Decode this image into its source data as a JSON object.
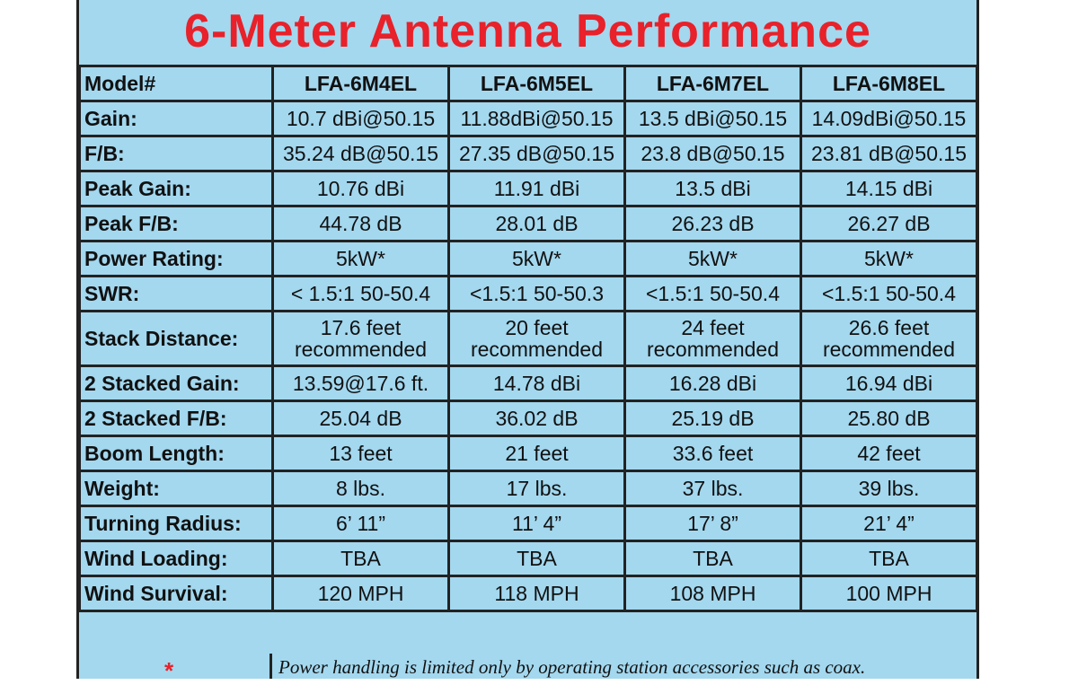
{
  "header": {
    "title": "6-Meter Antenna Performance"
  },
  "table": {
    "columns": [
      "Model#",
      "LFA-6M4EL",
      "LFA-6M5EL",
      "LFA-6M7EL",
      "LFA-6M8EL"
    ],
    "rows": [
      [
        "Gain:",
        "10.7 dBi@50.15",
        "11.88dBi@50.15",
        "13.5 dBi@50.15",
        "14.09dBi@50.15"
      ],
      [
        "F/B:",
        "35.24 dB@50.15",
        "27.35 dB@50.15",
        "23.8 dB@50.15",
        "23.81 dB@50.15"
      ],
      [
        "Peak Gain:",
        "10.76 dBi",
        "11.91 dBi",
        "13.5 dBi",
        "14.15 dBi"
      ],
      [
        "Peak F/B:",
        "44.78 dB",
        "28.01 dB",
        "26.23 dB",
        "26.27 dB"
      ],
      [
        "Power Rating:",
        "5kW*",
        "5kW*",
        "5kW*",
        "5kW*"
      ],
      [
        "SWR:",
        "< 1.5:1 50-50.4",
        "<1.5:1 50-50.3",
        "<1.5:1 50-50.4",
        "<1.5:1 50-50.4"
      ],
      [
        "Stack Distance:",
        "17.6 feet\nrecommended",
        "20 feet\nrecommended",
        "24 feet\nrecommended",
        "26.6 feet\nrecommended"
      ],
      [
        "2 Stacked Gain:",
        "13.59@17.6 ft.",
        "14.78 dBi",
        "16.28 dBi",
        "16.94 dBi"
      ],
      [
        "2 Stacked F/B:",
        "25.04 dB",
        "36.02 dB",
        "25.19 dB",
        "25.80 dB"
      ],
      [
        "Boom Length:",
        "13 feet",
        "21 feet",
        "33.6 feet",
        "42 feet"
      ],
      [
        "Weight:",
        "8 lbs.",
        "17 lbs.",
        "37 lbs.",
        "39 lbs."
      ],
      [
        "Turning Radius:",
        "6’ 11”",
        "11’ 4”",
        "17’ 8”",
        "21’ 4”"
      ],
      [
        "Wind Loading:",
        "TBA",
        "TBA",
        "TBA",
        "TBA"
      ],
      [
        "Wind Survival:",
        "120 MPH",
        "118 MPH",
        "108 MPH",
        "100 MPH"
      ]
    ]
  },
  "footnote": {
    "marker": "*",
    "text": "Power handling is limited only by operating station accessories such as coax."
  }
}
